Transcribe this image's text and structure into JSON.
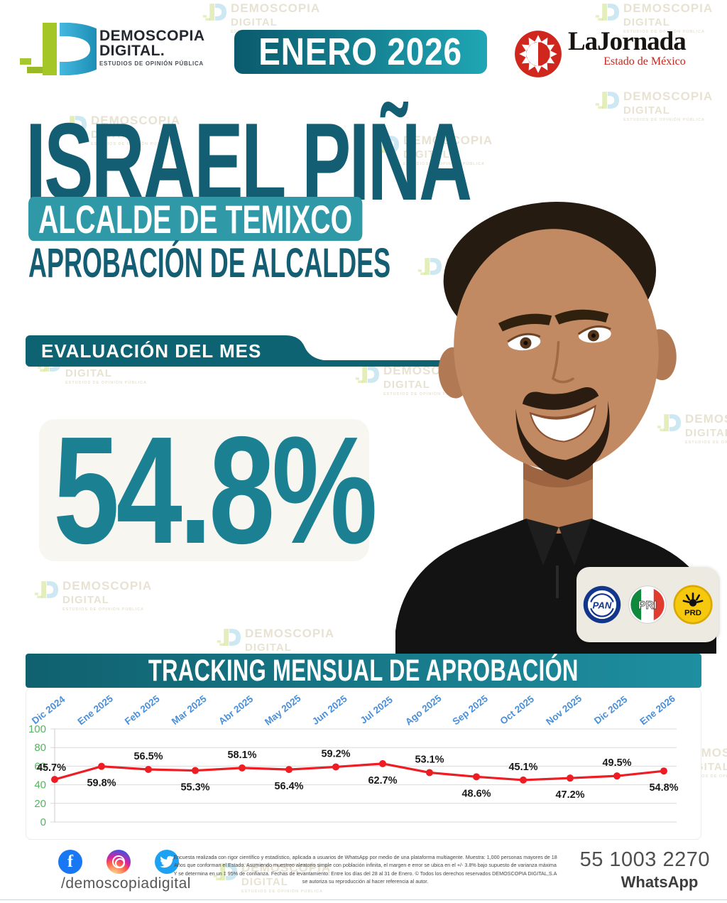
{
  "watermark": {
    "line1": "DEMOSCOPIA",
    "line2": "DIGITAL",
    "line3": "ESTUDIOS DE OPINIÓN PÚBLICA"
  },
  "header": {
    "brand": {
      "name_top": "DEMOSCOPIA",
      "name_bottom": "DIGITAL.",
      "tagline": "ESTUDIOS DE OPINIÓN PÚBLICA"
    },
    "period_badge": "ENERO 2026",
    "partner": {
      "name": "LaJornada",
      "region": "Estado de México"
    }
  },
  "hero": {
    "name": "ISRAEL PIÑA",
    "role_badge": "ALCALDE DE TEMIXCO",
    "section_title": "APROBACIÓN DE ALCALDES",
    "eval_banner": "EVALUACIÓN DEL MES",
    "score": "54.8%",
    "parties": [
      {
        "abbr": "PAN"
      },
      {
        "abbr": "PRI"
      },
      {
        "abbr": "PRD"
      }
    ]
  },
  "chart_data": {
    "type": "line",
    "title": "TRACKING MENSUAL DE APROBACIÓN",
    "categories": [
      "Dic 2024",
      "Ene 2025",
      "Feb 2025",
      "Mar 2025",
      "Abr 2025",
      "May 2025",
      "Jun 2025",
      "Jul 2025",
      "Ago 2025",
      "Sep 2025",
      "Oct 2025",
      "Nov 2025",
      "Dic 2025",
      "Ene 2026"
    ],
    "values": [
      45.7,
      59.8,
      56.5,
      55.3,
      58.1,
      56.4,
      59.2,
      62.7,
      53.1,
      48.6,
      45.1,
      47.2,
      49.5,
      54.8
    ],
    "labels": [
      "45.7%",
      "59.8%",
      "56.5%",
      "55.3%",
      "58.1%",
      "56.4%",
      "59.2%",
      "62.7%",
      "53.1%",
      "48.6%",
      "45.1%",
      "47.2%",
      "49.5%",
      "54.8%"
    ],
    "label_positions": [
      "left",
      "below",
      "above",
      "below",
      "above",
      "below",
      "above",
      "below",
      "above",
      "below",
      "above",
      "below",
      "above",
      "below"
    ],
    "ylim": [
      0,
      100
    ],
    "yticks": [
      100,
      80,
      60,
      40,
      20,
      0
    ],
    "grid": true,
    "legend_position": "none",
    "line_color": "#ee1c23",
    "ytick_color": "#55b45f",
    "xtick_color": "#4a90d9"
  },
  "footer": {
    "social_handle": "/demoscopiadigital",
    "disclaimer": "Encuesta realizada con rigor científico y estadístico, aplicada a usuarios de WhatsApp por medio de una plataforma multiagente. Muestra: 1,000 personas mayores de 18 Años que conforman el Estado. Asumiendo muestreo aleatorio simple con población infinita, el margen e error se ubica en el +/- 3.8% bajo supuesto de varianza máxima Y se determina en un ‡ 95% de confianza. Fechas de levantamiento: Entre los días del 28 al 31 de Enero. © Todos los derechos reservados DEMOSCOPIA DIGITAL,S.A se autoriza su reproducción al hacer referencia al autor.",
    "whatsapp_number": "55 1003 2270",
    "whatsapp_label": "WhatsApp"
  }
}
